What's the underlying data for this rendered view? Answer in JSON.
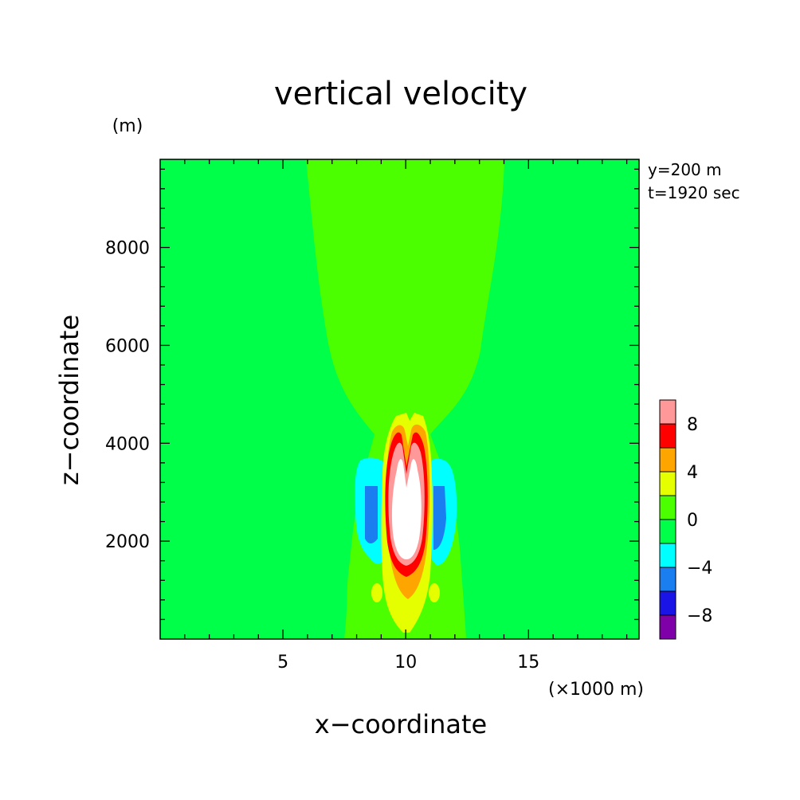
{
  "chart_data": {
    "type": "heatmap",
    "title": "vertical velocity",
    "xlabel": "x−coordinate",
    "ylabel": "z−coordinate",
    "x_unit": "(×1000 m)",
    "y_unit": "(m)",
    "annotations": [
      "y=200 m",
      "t=1920 sec"
    ],
    "xlim": [
      0,
      19.5
    ],
    "ylim": [
      0,
      9800
    ],
    "x_ticks": [
      {
        "value": 5,
        "label": "5"
      },
      {
        "value": 10,
        "label": "10"
      },
      {
        "value": 15,
        "label": "15"
      }
    ],
    "y_ticks": [
      {
        "value": 2000,
        "label": "2000"
      },
      {
        "value": 4000,
        "label": "4000"
      },
      {
        "value": 6000,
        "label": "6000"
      },
      {
        "value": 8000,
        "label": "8000"
      }
    ],
    "colorbar": {
      "levels": [
        -10,
        -8,
        -6,
        -4,
        -2,
        0,
        2,
        4,
        6,
        8,
        10
      ],
      "colors": [
        "#7f00a8",
        "#1a14e6",
        "#1a7df0",
        "#00ffff",
        "#00ff48",
        "#4cff00",
        "#e6ff00",
        "#ffa500",
        "#ff0000",
        "#ff9999"
      ],
      "tick_labels": [
        {
          "value": 8,
          "label": "8"
        },
        {
          "value": 4,
          "label": "4"
        },
        {
          "value": 0,
          "label": "0"
        },
        {
          "value": -4,
          "label": "−4"
        },
        {
          "value": -8,
          "label": "−8"
        }
      ],
      "above_max_color": "#ffffff"
    },
    "field": {
      "background_value_range": [
        -2,
        0
      ],
      "max_region": "white (>10) updraft core near x=10.2, z=1300–4200 m",
      "features": [
        {
          "name": "positive plume",
          "range": [
            0,
            2
          ],
          "x_center": 10.2,
          "z_range": [
            0,
            9800
          ],
          "widening_with_height": true
        },
        {
          "name": "updraft core",
          "range": [
            8,
            10
          ],
          "x_center": 10.2,
          "z_range": [
            1300,
            4300
          ]
        },
        {
          "name": "left downdraft",
          "range": [
            -6,
            -4
          ],
          "x_center": 8.8,
          "z_range": [
            1700,
            3200
          ]
        },
        {
          "name": "right downdraft",
          "range": [
            -6,
            -4
          ],
          "x_center": 11.7,
          "z_range": [
            1700,
            3200
          ]
        },
        {
          "name": "low-level updraft",
          "range": [
            2,
            4
          ],
          "x_center": 10.2,
          "z_range": [
            0,
            1800
          ]
        }
      ]
    }
  }
}
